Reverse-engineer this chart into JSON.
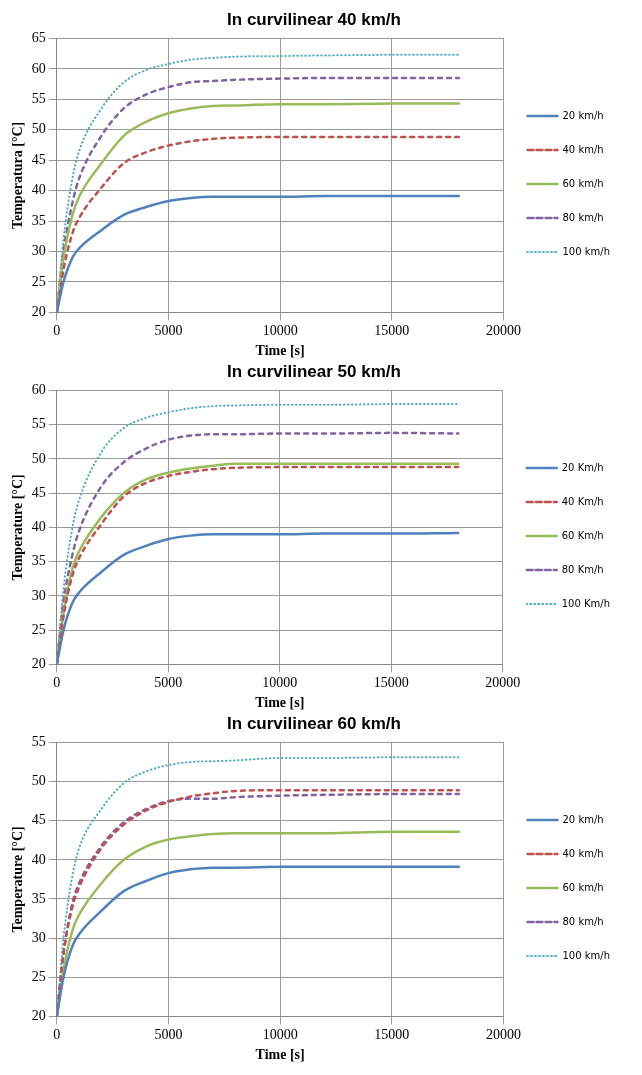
{
  "chart_data": [
    {
      "type": "line",
      "title": "In curvilinear 40 km/h",
      "xlabel": "Time [s]",
      "ylabel": "Temperatura [°C]",
      "x": [
        0,
        300,
        700,
        1000,
        2000,
        3000,
        4000,
        5000,
        6000,
        7000,
        8000,
        10000,
        12000,
        15000,
        18000
      ],
      "series": [
        {
          "name": "20 km/h",
          "color": "#4f81bd",
          "line_style": "solid",
          "values": [
            20,
            25,
            29,
            30.5,
            33.5,
            36,
            37.3,
            38.3,
            38.8,
            39,
            39,
            39,
            39.1,
            39.1,
            39.1
          ]
        },
        {
          "name": "40 km/h",
          "color": "#c0504d",
          "line_style": "dashed",
          "values": [
            20,
            27,
            33,
            35.5,
            40.5,
            44.5,
            46.3,
            47.4,
            48.1,
            48.5,
            48.7,
            48.8,
            48.8,
            48.8,
            48.8
          ]
        },
        {
          "name": "60 km/h",
          "color": "#9bbb59",
          "line_style": "solid",
          "values": [
            20,
            29,
            36,
            39,
            44.5,
            49,
            51.3,
            52.7,
            53.5,
            53.9,
            54,
            54.2,
            54.2,
            54.3,
            54.3
          ]
        },
        {
          "name": "80 km/h",
          "color": "#8064a2",
          "line_style": "dashed",
          "values": [
            20,
            30,
            38,
            42,
            49,
            53.5,
            55.8,
            57,
            57.8,
            58,
            58.2,
            58.4,
            58.5,
            58.5,
            58.5
          ]
        },
        {
          "name": "100 km/h",
          "color": "#4bacc6",
          "line_style": "dotted",
          "values": [
            20,
            32,
            42,
            46.5,
            53.5,
            57.8,
            59.8,
            60.8,
            61.5,
            61.8,
            62,
            62.1,
            62.2,
            62.3,
            62.3
          ]
        }
      ],
      "xlim": [
        0,
        20000
      ],
      "xticks": [
        0,
        5000,
        10000,
        15000,
        20000
      ],
      "ylim": [
        20,
        65
      ],
      "yticks": [
        20,
        25,
        30,
        35,
        40,
        45,
        50,
        55,
        60,
        65
      ],
      "grid": true,
      "legend": "right",
      "marker": "none"
    },
    {
      "type": "line",
      "title": "In curvilinear 50 km/h",
      "xlabel": "Time [s]",
      "ylabel": "Temperature [°C]",
      "x": [
        0,
        300,
        700,
        1000,
        2000,
        3000,
        4000,
        5000,
        6000,
        7000,
        8000,
        10000,
        12000,
        15000,
        18000
      ],
      "series": [
        {
          "name": "20 Km/h",
          "color": "#4f81bd",
          "line_style": "solid",
          "values": [
            20,
            25,
            29,
            30.5,
            33.5,
            36,
            37.3,
            38.3,
            38.8,
            39,
            39,
            39,
            39.1,
            39.1,
            39.2
          ]
        },
        {
          "name": "40 Km/h",
          "color": "#c0504d",
          "line_style": "dashed",
          "values": [
            20,
            27,
            33,
            35.5,
            40.5,
            44.5,
            46.5,
            47.5,
            48.1,
            48.5,
            48.7,
            48.8,
            48.8,
            48.8,
            48.8
          ]
        },
        {
          "name": "60 Km/h",
          "color": "#9bbb59",
          "line_style": "solid",
          "values": [
            20,
            27.5,
            34,
            36.5,
            41.5,
            45,
            47,
            48,
            48.6,
            49,
            49.3,
            49.3,
            49.3,
            49.3,
            49.3
          ]
        },
        {
          "name": "80 Km/h",
          "color": "#8064a2",
          "line_style": "dashed",
          "values": [
            20,
            29,
            36,
            39.5,
            46,
            49.5,
            51.5,
            52.8,
            53.4,
            53.6,
            53.6,
            53.7,
            53.7,
            53.8,
            53.7
          ]
        },
        {
          "name": "100 Km/h",
          "color": "#4bacc6",
          "line_style": "dotted",
          "values": [
            20,
            31,
            40,
            44,
            51,
            54.5,
            56,
            56.8,
            57.4,
            57.7,
            57.8,
            57.9,
            57.9,
            58,
            58
          ]
        }
      ],
      "xlim": [
        0,
        20000
      ],
      "xticks": [
        0,
        5000,
        10000,
        15000,
        20000
      ],
      "ylim": [
        20,
        60
      ],
      "yticks": [
        20,
        25,
        30,
        35,
        40,
        45,
        50,
        55,
        60
      ],
      "grid": true,
      "legend": "right",
      "marker": "none"
    },
    {
      "type": "line",
      "title": "In curvilinear 60 km/h",
      "xlabel": "Time [s]",
      "ylabel": "Temperature [°C]",
      "x": [
        0,
        300,
        700,
        1000,
        2000,
        3000,
        4000,
        5000,
        6000,
        7000,
        8000,
        10000,
        12000,
        15000,
        18000
      ],
      "series": [
        {
          "name": "20 km/h",
          "color": "#4f81bd",
          "line_style": "solid",
          "values": [
            20,
            25,
            29,
            30.5,
            33.5,
            36,
            37.3,
            38.3,
            38.8,
            39,
            39,
            39.1,
            39.1,
            39.1,
            39.1
          ]
        },
        {
          "name": "40 km/h",
          "color": "#c0504d",
          "line_style": "dashed",
          "values": [
            20,
            28,
            34,
            36.5,
            41.5,
            44.5,
            46.3,
            47.4,
            48.1,
            48.5,
            48.8,
            48.9,
            48.9,
            48.9,
            48.9
          ]
        },
        {
          "name": "60 km/h",
          "color": "#9bbb59",
          "line_style": "solid",
          "values": [
            20,
            26,
            31,
            33,
            37,
            40,
            41.7,
            42.6,
            43,
            43.3,
            43.4,
            43.4,
            43.4,
            43.6,
            43.6
          ]
        },
        {
          "name": "80 km/h",
          "color": "#8064a2",
          "line_style": "dashed",
          "values": [
            20,
            28,
            34.5,
            37,
            41.8,
            44.8,
            46.5,
            47.5,
            47.8,
            47.8,
            48,
            48.2,
            48.3,
            48.4,
            48.4
          ]
        },
        {
          "name": "100 km/h",
          "color": "#4bacc6",
          "line_style": "dotted",
          "values": [
            20,
            30,
            38,
            41.5,
            46.5,
            49.8,
            51.3,
            52.1,
            52.5,
            52.6,
            52.7,
            53,
            53,
            53.1,
            53.1
          ]
        }
      ],
      "xlim": [
        0,
        20000
      ],
      "xticks": [
        0,
        5000,
        10000,
        15000,
        20000
      ],
      "ylim": [
        20,
        55
      ],
      "yticks": [
        20,
        25,
        30,
        35,
        40,
        45,
        50,
        55
      ],
      "grid": true,
      "legend": "right",
      "marker": "none"
    }
  ]
}
